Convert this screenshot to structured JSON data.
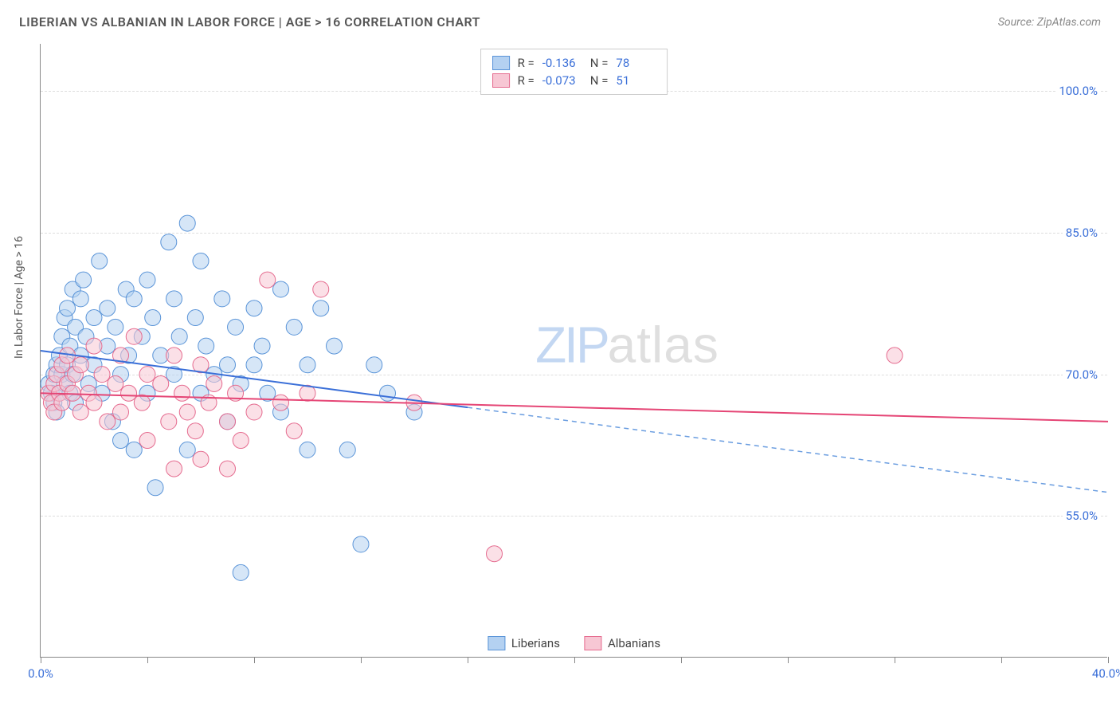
{
  "header": {
    "title": "LIBERIAN VS ALBANIAN IN LABOR FORCE | AGE > 16 CORRELATION CHART",
    "source": "Source: ZipAtlas.com"
  },
  "yaxis_label": "In Labor Force | Age > 16",
  "watermark": {
    "a": "ZIP",
    "b": "atlas"
  },
  "chart": {
    "type": "scatter",
    "xlim": [
      0,
      40
    ],
    "ylim": [
      40,
      105
    ],
    "x_ticks": [
      0,
      4,
      8,
      12,
      16,
      20,
      24,
      28,
      32,
      36,
      40
    ],
    "x_tick_labels": {
      "0": "0.0%",
      "40": "40.0%"
    },
    "y_gridlines": [
      55,
      70,
      85,
      100
    ],
    "y_tick_labels": {
      "55": "55.0%",
      "70": "70.0%",
      "85": "85.0%",
      "100": "100.0%"
    },
    "background_color": "#ffffff",
    "grid_color": "#dddddd",
    "axis_color": "#888888",
    "tick_label_color": "#3a6fd8",
    "marker_radius": 10,
    "marker_opacity": 0.55,
    "trend_line_width": 2,
    "series": [
      {
        "name": "Liberians",
        "label": "Liberians",
        "fill": "#b4d1f1",
        "stroke": "#5a94d8",
        "line_solid_color": "#3a6fd8",
        "line_dash_color": "#6a9de0",
        "R": "-0.136",
        "N": "78",
        "trend": {
          "x1": 0,
          "y1": 72.5,
          "x2_solid": 16,
          "y2_solid": 66.5,
          "x2": 40,
          "y2": 57.5
        },
        "points": [
          [
            0.3,
            69
          ],
          [
            0.4,
            68
          ],
          [
            0.5,
            70
          ],
          [
            0.5,
            67
          ],
          [
            0.6,
            71
          ],
          [
            0.6,
            66
          ],
          [
            0.7,
            72
          ],
          [
            0.7,
            68
          ],
          [
            0.8,
            74
          ],
          [
            0.8,
            70
          ],
          [
            0.9,
            76
          ],
          [
            0.9,
            69
          ],
          [
            1.0,
            77
          ],
          [
            1.0,
            71
          ],
          [
            1.1,
            73
          ],
          [
            1.1,
            68
          ],
          [
            1.2,
            79
          ],
          [
            1.2,
            70
          ],
          [
            1.3,
            75
          ],
          [
            1.3,
            67
          ],
          [
            1.5,
            78
          ],
          [
            1.5,
            72
          ],
          [
            1.6,
            80
          ],
          [
            1.7,
            74
          ],
          [
            1.8,
            69
          ],
          [
            2.0,
            71
          ],
          [
            2.0,
            76
          ],
          [
            2.2,
            82
          ],
          [
            2.3,
            68
          ],
          [
            2.5,
            73
          ],
          [
            2.5,
            77
          ],
          [
            2.7,
            65
          ],
          [
            2.8,
            75
          ],
          [
            3.0,
            70
          ],
          [
            3.0,
            63
          ],
          [
            3.2,
            79
          ],
          [
            3.3,
            72
          ],
          [
            3.5,
            78
          ],
          [
            3.5,
            62
          ],
          [
            3.8,
            74
          ],
          [
            4.0,
            80
          ],
          [
            4.0,
            68
          ],
          [
            4.2,
            76
          ],
          [
            4.3,
            58
          ],
          [
            4.5,
            72
          ],
          [
            4.8,
            84
          ],
          [
            5.0,
            78
          ],
          [
            5.0,
            70
          ],
          [
            5.2,
            74
          ],
          [
            5.5,
            86
          ],
          [
            5.5,
            62
          ],
          [
            5.8,
            76
          ],
          [
            6.0,
            68
          ],
          [
            6.0,
            82
          ],
          [
            6.2,
            73
          ],
          [
            6.5,
            70
          ],
          [
            6.8,
            78
          ],
          [
            7.0,
            65
          ],
          [
            7.0,
            71
          ],
          [
            7.3,
            75
          ],
          [
            7.5,
            69
          ],
          [
            7.5,
            49
          ],
          [
            8.0,
            77
          ],
          [
            8.0,
            71
          ],
          [
            8.3,
            73
          ],
          [
            8.5,
            68
          ],
          [
            9.0,
            79
          ],
          [
            9.0,
            66
          ],
          [
            9.5,
            75
          ],
          [
            10.0,
            71
          ],
          [
            10.0,
            62
          ],
          [
            10.5,
            77
          ],
          [
            11.0,
            73
          ],
          [
            11.5,
            62
          ],
          [
            12.0,
            52
          ],
          [
            12.5,
            71
          ],
          [
            13.0,
            68
          ],
          [
            14.0,
            66
          ]
        ]
      },
      {
        "name": "Albanians",
        "label": "Albanians",
        "fill": "#f7c7d4",
        "stroke": "#e56b8f",
        "line_solid_color": "#e54575",
        "line_dash_color": "#e88ba8",
        "R": "-0.073",
        "N": "51",
        "trend": {
          "x1": 0,
          "y1": 68,
          "x2_solid": 40,
          "y2_solid": 65,
          "x2": 40,
          "y2": 65
        },
        "points": [
          [
            0.3,
            68
          ],
          [
            0.4,
            67
          ],
          [
            0.5,
            69
          ],
          [
            0.5,
            66
          ],
          [
            0.6,
            70
          ],
          [
            0.7,
            68
          ],
          [
            0.8,
            71
          ],
          [
            0.8,
            67
          ],
          [
            1.0,
            69
          ],
          [
            1.0,
            72
          ],
          [
            1.2,
            68
          ],
          [
            1.3,
            70
          ],
          [
            1.5,
            66
          ],
          [
            1.5,
            71
          ],
          [
            1.8,
            68
          ],
          [
            2.0,
            73
          ],
          [
            2.0,
            67
          ],
          [
            2.3,
            70
          ],
          [
            2.5,
            65
          ],
          [
            2.8,
            69
          ],
          [
            3.0,
            72
          ],
          [
            3.0,
            66
          ],
          [
            3.3,
            68
          ],
          [
            3.5,
            74
          ],
          [
            3.8,
            67
          ],
          [
            4.0,
            70
          ],
          [
            4.0,
            63
          ],
          [
            4.5,
            69
          ],
          [
            4.8,
            65
          ],
          [
            5.0,
            72
          ],
          [
            5.0,
            60
          ],
          [
            5.3,
            68
          ],
          [
            5.5,
            66
          ],
          [
            5.8,
            64
          ],
          [
            6.0,
            71
          ],
          [
            6.0,
            61
          ],
          [
            6.3,
            67
          ],
          [
            6.5,
            69
          ],
          [
            7.0,
            65
          ],
          [
            7.0,
            60
          ],
          [
            7.3,
            68
          ],
          [
            7.5,
            63
          ],
          [
            8.0,
            66
          ],
          [
            8.5,
            80
          ],
          [
            9.0,
            67
          ],
          [
            9.5,
            64
          ],
          [
            10.0,
            68
          ],
          [
            10.5,
            79
          ],
          [
            14.0,
            67
          ],
          [
            17.0,
            51
          ],
          [
            32.0,
            72
          ]
        ]
      }
    ]
  },
  "legend_top": {
    "border_color": "#cccccc"
  },
  "legend_bottom": {
    "items": [
      "Liberians",
      "Albanians"
    ]
  }
}
